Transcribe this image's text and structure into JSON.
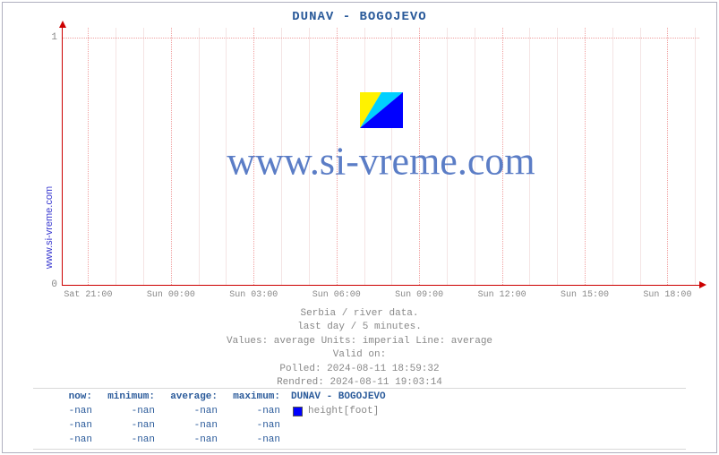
{
  "title": "DUNAV -  BOGOJEVO",
  "side_label": "www.si-vreme.com",
  "watermark": "www.si-vreme.com",
  "chart": {
    "type": "line",
    "xlim": [
      "Sat 21:00",
      "Sun 18:00"
    ],
    "ylim": [
      0,
      1
    ],
    "yticks": [
      {
        "pos": 1.0,
        "label": "0"
      },
      {
        "pos": 0.04,
        "label": "1"
      }
    ],
    "xticks_major": [
      {
        "pos": 0.04,
        "label": "Sat 21:00"
      },
      {
        "pos": 0.17,
        "label": "Sun 00:00"
      },
      {
        "pos": 0.3,
        "label": "Sun 03:00"
      },
      {
        "pos": 0.43,
        "label": "Sun 06:00"
      },
      {
        "pos": 0.56,
        "label": "Sun 09:00"
      },
      {
        "pos": 0.69,
        "label": "Sun 12:00"
      },
      {
        "pos": 0.82,
        "label": "Sun 15:00"
      },
      {
        "pos": 0.95,
        "label": "Sun 18:00"
      }
    ],
    "minor_per_major": 2,
    "grid_color": "#f0a0a0",
    "axis_color": "#cc0000",
    "background_color": "#ffffff"
  },
  "meta": {
    "line1": "Serbia / river data.",
    "line2": "last day / 5 minutes.",
    "line3": "Values: average  Units: imperial  Line: average",
    "line4": "Valid on:",
    "line5": "Polled: 2024-08-11 18:59:32",
    "line6": "Rendred: 2024-08-11 19:03:14"
  },
  "legend": {
    "headers": {
      "now": "now:",
      "min": "minimum:",
      "avg": "average:",
      "max": "maximum:"
    },
    "series_label": "DUNAV -  BOGOJEVO",
    "swatch_color": "#0000ff",
    "swatch_label": "height[foot]",
    "rows": [
      {
        "now": "-nan",
        "min": "-nan",
        "avg": "-nan",
        "max": "-nan"
      },
      {
        "now": "-nan",
        "min": "-nan",
        "avg": "-nan",
        "max": "-nan"
      },
      {
        "now": "-nan",
        "min": "-nan",
        "avg": "-nan",
        "max": "-nan"
      }
    ]
  },
  "icon": {
    "c1": "#fff200",
    "c2": "#00d0ff",
    "c3": "#0000ff"
  }
}
